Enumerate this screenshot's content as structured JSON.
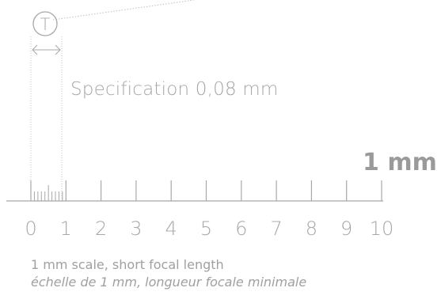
{
  "diagram": {
    "symbol_letter": "T",
    "specification": "Specification 0,08 mm",
    "unit_label": "1 mm",
    "scale_labels": [
      "0",
      "1",
      "2",
      "3",
      "4",
      "5",
      "6",
      "7",
      "8",
      "9",
      "10"
    ],
    "caption_en": "1 mm scale, short focal length",
    "caption_fr": "échelle de 1 mm, longueur focale minimale",
    "colors": {
      "ink": "#a8a8a8",
      "light": "#c4c4c4"
    }
  }
}
